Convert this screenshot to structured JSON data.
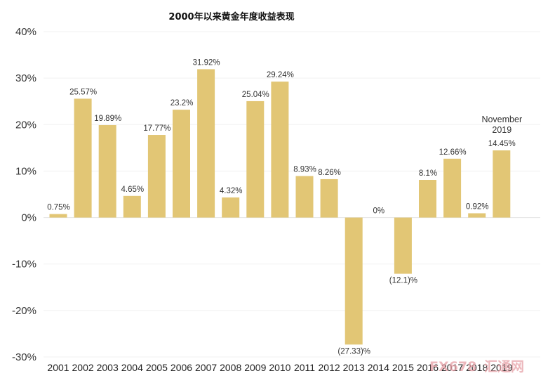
{
  "chart_data": {
    "type": "bar",
    "title": "2000年以来黄金年度收益表现",
    "xlabel": "",
    "ylabel": "",
    "ylim": [
      -30,
      40
    ],
    "yticks": [
      "40%",
      "30%",
      "20%",
      "10%",
      "0%",
      "-10%",
      "-20%",
      "-30%"
    ],
    "ytick_values": [
      40,
      30,
      20,
      10,
      0,
      -10,
      -20,
      -30
    ],
    "categories": [
      "2001",
      "2002",
      "2003",
      "2004",
      "2005",
      "2006",
      "2007",
      "2008",
      "2009",
      "2010",
      "2011",
      "2012",
      "2013",
      "2014",
      "2015",
      "2016",
      "2017",
      "2018",
      "2019"
    ],
    "values": [
      0.75,
      25.57,
      19.89,
      4.65,
      17.77,
      23.2,
      31.92,
      4.32,
      25.04,
      29.24,
      8.93,
      8.26,
      -27.33,
      0,
      -12.1,
      8.1,
      12.66,
      0.92,
      14.45
    ],
    "data_labels": [
      "0.75%",
      "25.57%",
      "19.89%",
      "4.65%",
      "17.77%",
      "23.2%",
      "31.92%",
      "4.32%",
      "25.04%",
      "29.24%",
      "8.93%",
      "8.26%",
      "(27.33)%",
      "0%",
      "(12.1)%",
      "8.1%",
      "12.66%",
      "0.92%",
      "14.45%"
    ],
    "annotation": [
      "November",
      "2019"
    ],
    "bar_color": "#E2C675",
    "grid": true
  },
  "watermark": {
    "logo_text": "FX678",
    "cn_text": "汇通网",
    "color": "#e6a0a6"
  }
}
